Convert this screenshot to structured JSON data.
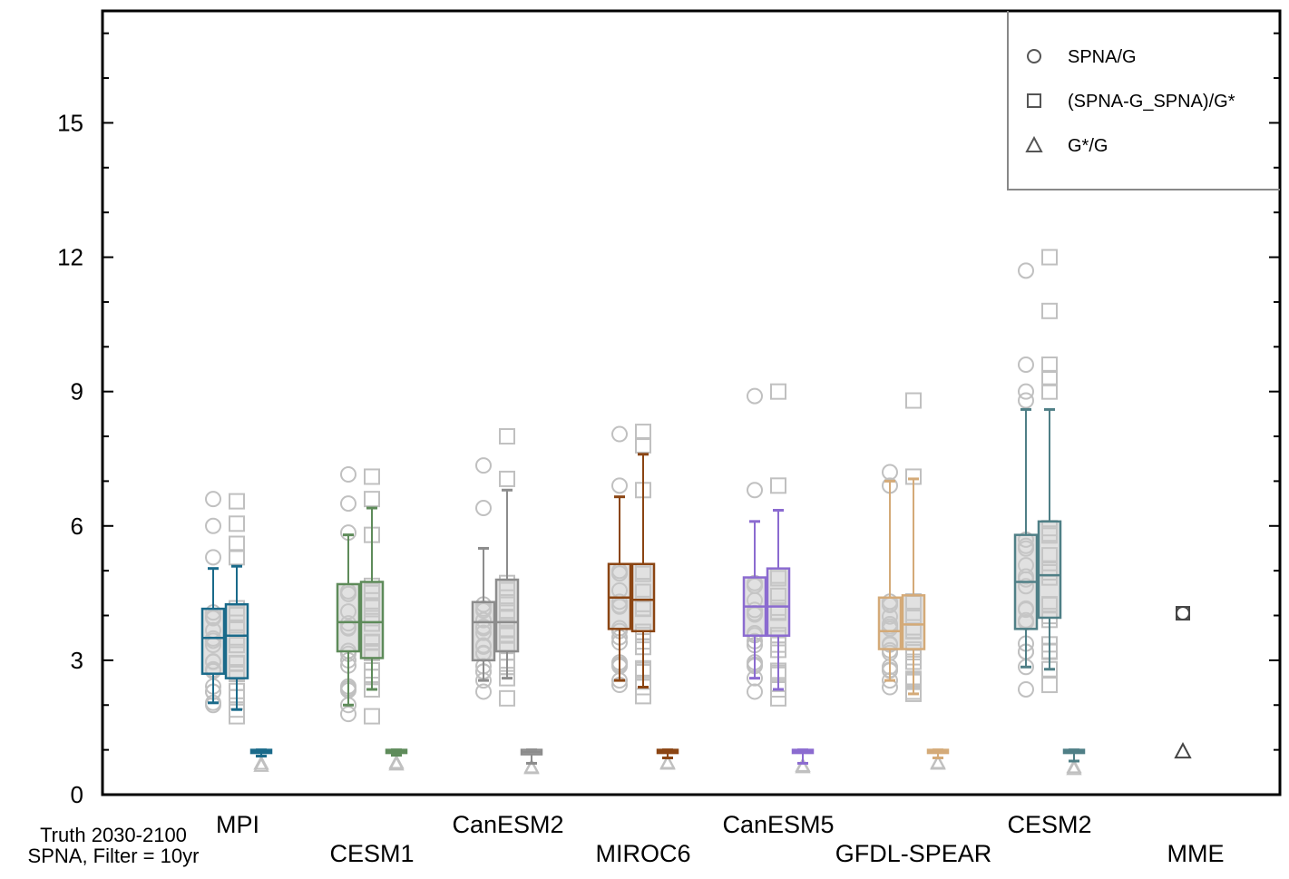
{
  "chart_data": {
    "type": "box",
    "title": "",
    "xlabel": "",
    "ylabel": "",
    "ylim": [
      0,
      17.5
    ],
    "yticks": [
      0,
      3,
      6,
      9,
      12,
      15
    ],
    "grid": false,
    "legend_position": "top-right",
    "legend": [
      {
        "name": "SPNA/G",
        "marker": "circle"
      },
      {
        "name": "(SPNA-G_SPNA)/G*",
        "marker": "square"
      },
      {
        "name": "G*/G",
        "marker": "triangle"
      }
    ],
    "footnote": [
      "Truth 2030-2100",
      "SPNA, Filter = 10yr"
    ],
    "marker_color": "#c0c0c0",
    "models": [
      {
        "name": "MPI",
        "color": "#1a6a8a",
        "boxes": [
          {
            "series": "SPNA/G",
            "q1": 2.7,
            "median": 3.5,
            "q3": 4.15,
            "whisker_low": 2.05,
            "whisker_high": 5.05
          },
          {
            "series": "(SPNA-G_SPNA)/G*",
            "q1": 2.6,
            "median": 3.55,
            "q3": 4.25,
            "whisker_low": 1.9,
            "whisker_high": 5.1
          },
          {
            "series": "G*/G",
            "q1": 0.93,
            "median": 0.97,
            "q3": 1.0,
            "whisker_low": 0.86,
            "whisker_high": 1.0
          }
        ],
        "outliers": {
          "SPNA/G": [
            6.6,
            6.0,
            5.3,
            2.0
          ],
          "(SPNA-G_SPNA)/G*": [
            6.55,
            6.05,
            5.6,
            5.3,
            1.75
          ],
          "G*/G": [
            0.7,
            0.65
          ]
        }
      },
      {
        "name": "CESM1",
        "color": "#5e8b5a",
        "boxes": [
          {
            "series": "SPNA/G",
            "q1": 3.2,
            "median": 3.85,
            "q3": 4.7,
            "whisker_low": 2.0,
            "whisker_high": 5.8
          },
          {
            "series": "(SPNA-G_SPNA)/G*",
            "q1": 3.05,
            "median": 3.85,
            "q3": 4.75,
            "whisker_low": 2.35,
            "whisker_high": 6.4
          },
          {
            "series": "G*/G",
            "q1": 0.93,
            "median": 0.96,
            "q3": 1.0,
            "whisker_low": 0.88,
            "whisker_high": 1.0
          }
        ],
        "outliers": {
          "SPNA/G": [
            7.15,
            6.5,
            5.85,
            1.8
          ],
          "(SPNA-G_SPNA)/G*": [
            7.1,
            6.6,
            5.8,
            1.75
          ],
          "G*/G": [
            0.72,
            0.68
          ]
        }
      },
      {
        "name": "CanESM2",
        "color": "#8c8c8c",
        "boxes": [
          {
            "series": "SPNA/G",
            "q1": 3.0,
            "median": 3.85,
            "q3": 4.3,
            "whisker_low": 2.55,
            "whisker_high": 5.5
          },
          {
            "series": "(SPNA-G_SPNA)/G*",
            "q1": 3.2,
            "median": 3.85,
            "q3": 4.8,
            "whisker_low": 2.6,
            "whisker_high": 6.8
          },
          {
            "series": "G*/G",
            "q1": 0.9,
            "median": 0.95,
            "q3": 1.0,
            "whisker_low": 0.7,
            "whisker_high": 1.0
          }
        ],
        "outliers": {
          "SPNA/G": [
            7.35,
            6.4,
            2.3
          ],
          "(SPNA-G_SPNA)/G*": [
            8.0,
            7.05,
            2.15
          ],
          "G*/G": [
            0.62,
            0.6
          ]
        }
      },
      {
        "name": "MIROC6",
        "color": "#8b4513",
        "boxes": [
          {
            "series": "SPNA/G",
            "q1": 3.7,
            "median": 4.4,
            "q3": 5.15,
            "whisker_low": 2.55,
            "whisker_high": 6.65
          },
          {
            "series": "(SPNA-G_SPNA)/G*",
            "q1": 3.65,
            "median": 4.35,
            "q3": 5.15,
            "whisker_low": 2.4,
            "whisker_high": 7.6
          },
          {
            "series": "G*/G",
            "q1": 0.93,
            "median": 0.97,
            "q3": 1.0,
            "whisker_low": 0.82,
            "whisker_high": 1.0
          }
        ],
        "outliers": {
          "SPNA/G": [
            8.05,
            6.9,
            2.45
          ],
          "(SPNA-G_SPNA)/G*": [
            8.1,
            7.8,
            6.8,
            2.2
          ],
          "G*/G": [
            0.72,
            0.7
          ]
        }
      },
      {
        "name": "CanESM5",
        "color": "#8b6bd0",
        "boxes": [
          {
            "series": "SPNA/G",
            "q1": 3.55,
            "median": 4.2,
            "q3": 4.85,
            "whisker_low": 2.6,
            "whisker_high": 6.1
          },
          {
            "series": "(SPNA-G_SPNA)/G*",
            "q1": 3.55,
            "median": 4.2,
            "q3": 5.05,
            "whisker_low": 2.35,
            "whisker_high": 6.35
          },
          {
            "series": "G*/G",
            "q1": 0.93,
            "median": 0.96,
            "q3": 1.0,
            "whisker_low": 0.7,
            "whisker_high": 1.0
          }
        ],
        "outliers": {
          "SPNA/G": [
            8.9,
            6.8,
            2.3
          ],
          "(SPNA-G_SPNA)/G*": [
            9.0,
            6.9,
            2.15
          ],
          "G*/G": [
            0.65,
            0.62
          ]
        }
      },
      {
        "name": "GFDL-SPEAR",
        "color": "#d4aa78",
        "boxes": [
          {
            "series": "SPNA/G",
            "q1": 3.25,
            "median": 3.65,
            "q3": 4.4,
            "whisker_low": 2.55,
            "whisker_high": 7.0
          },
          {
            "series": "(SPNA-G_SPNA)/G*",
            "q1": 3.25,
            "median": 3.8,
            "q3": 4.45,
            "whisker_low": 2.25,
            "whisker_high": 7.05
          },
          {
            "series": "G*/G",
            "q1": 0.93,
            "median": 0.96,
            "q3": 1.0,
            "whisker_low": 0.82,
            "whisker_high": 1.0
          }
        ],
        "outliers": {
          "SPNA/G": [
            7.2,
            6.9,
            2.4
          ],
          "(SPNA-G_SPNA)/G*": [
            8.8,
            7.1,
            2.3
          ],
          "G*/G": [
            0.72,
            0.7
          ]
        }
      },
      {
        "name": "CESM2",
        "color": "#4f7f86",
        "boxes": [
          {
            "series": "SPNA/G",
            "q1": 3.7,
            "median": 4.75,
            "q3": 5.8,
            "whisker_low": 2.85,
            "whisker_high": 8.6
          },
          {
            "series": "(SPNA-G_SPNA)/G*",
            "q1": 3.95,
            "median": 4.9,
            "q3": 6.1,
            "whisker_low": 2.8,
            "whisker_high": 8.6
          },
          {
            "series": "G*/G",
            "q1": 0.93,
            "median": 0.97,
            "q3": 1.0,
            "whisker_low": 0.75,
            "whisker_high": 1.0
          }
        ],
        "outliers": {
          "SPNA/G": [
            11.7,
            9.6,
            9.0,
            8.8,
            2.35
          ],
          "(SPNA-G_SPNA)/G*": [
            12.0,
            10.8,
            9.6,
            9.3,
            9.0,
            2.45
          ],
          "G*/G": [
            0.62,
            0.58
          ]
        }
      },
      {
        "name": "MME",
        "color": "#444444",
        "points": [
          {
            "series": "SPNA/G",
            "value": 4.05
          },
          {
            "series": "(SPNA-G_SPNA)/G*",
            "value": 4.05
          },
          {
            "series": "G*/G",
            "value": 0.97
          }
        ]
      }
    ]
  }
}
